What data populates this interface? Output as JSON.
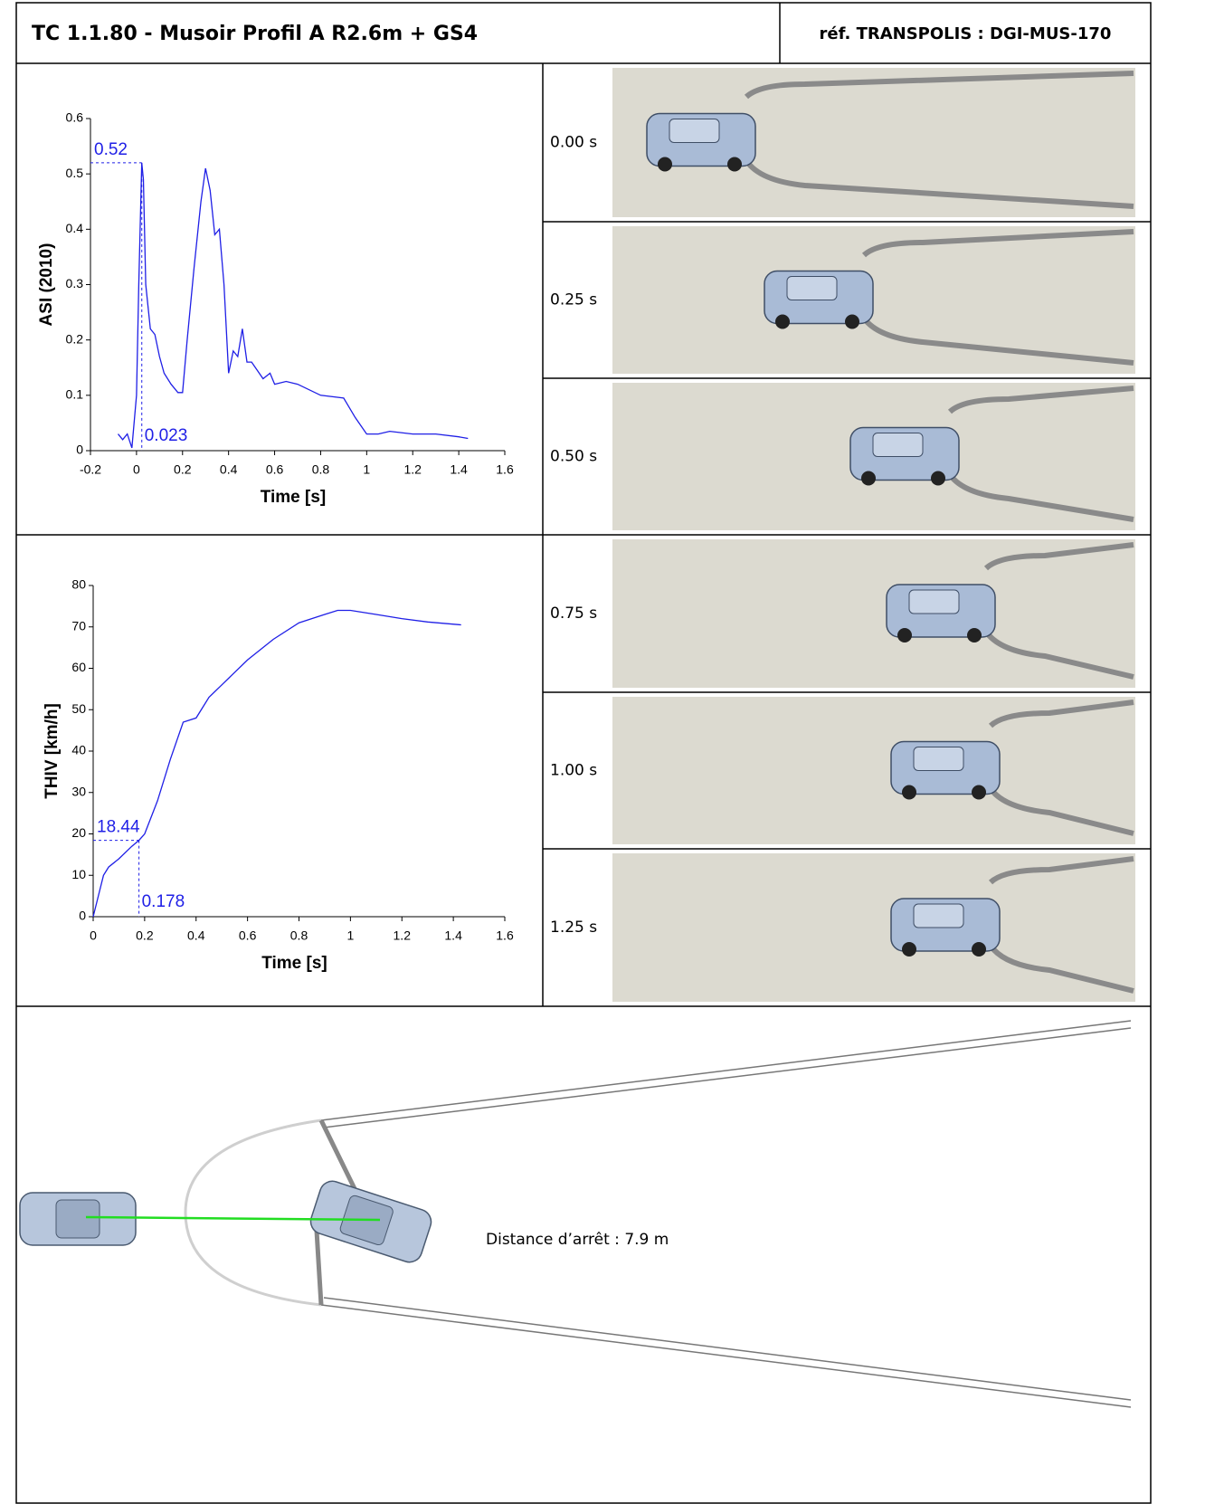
{
  "header": {
    "title": "TC 1.1.80 - Musoir Profil A R2.6m + GS4",
    "reference": "réf. TRANSPOLIS : DGI-MUS-170"
  },
  "chart_data": [
    {
      "type": "line",
      "ylabel": "ASI (2010)",
      "xlabel": "Time [s]",
      "color": "#1f1fe6",
      "x": [
        -0.08,
        -0.06,
        -0.04,
        -0.02,
        0.0,
        0.01,
        0.023,
        0.03,
        0.04,
        0.06,
        0.08,
        0.1,
        0.12,
        0.15,
        0.18,
        0.2,
        0.22,
        0.25,
        0.28,
        0.3,
        0.32,
        0.34,
        0.36,
        0.38,
        0.4,
        0.42,
        0.44,
        0.46,
        0.48,
        0.5,
        0.55,
        0.58,
        0.6,
        0.65,
        0.7,
        0.8,
        0.9,
        0.95,
        1.0,
        1.05,
        1.1,
        1.2,
        1.3,
        1.4,
        1.44
      ],
      "values": [
        0.03,
        0.02,
        0.03,
        0.005,
        0.1,
        0.3,
        0.52,
        0.49,
        0.3,
        0.22,
        0.21,
        0.17,
        0.14,
        0.12,
        0.105,
        0.105,
        0.2,
        0.33,
        0.45,
        0.51,
        0.47,
        0.39,
        0.4,
        0.3,
        0.14,
        0.18,
        0.17,
        0.22,
        0.16,
        0.16,
        0.13,
        0.14,
        0.12,
        0.125,
        0.12,
        0.1,
        0.095,
        0.06,
        0.03,
        0.03,
        0.035,
        0.03,
        0.03,
        0.025,
        0.022
      ],
      "xlim": [
        -0.2,
        1.6
      ],
      "xticks": [
        -0.2,
        0,
        0.2,
        0.4,
        0.6,
        0.8,
        1,
        1.2,
        1.4,
        1.6
      ],
      "ylim": [
        0,
        0.6
      ],
      "yticks": [
        0,
        0.1,
        0.2,
        0.3,
        0.4,
        0.5,
        0.6
      ],
      "annotation": {
        "x": 0.023,
        "y": 0.52
      }
    },
    {
      "type": "line",
      "ylabel": "THIV [km/h]",
      "xlabel": "Time [s]",
      "color": "#1f1fe6",
      "x": [
        0,
        0.02,
        0.04,
        0.06,
        0.1,
        0.15,
        0.178,
        0.2,
        0.25,
        0.3,
        0.35,
        0.4,
        0.45,
        0.5,
        0.6,
        0.7,
        0.8,
        0.9,
        0.95,
        1.0,
        1.1,
        1.2,
        1.3,
        1.43
      ],
      "values": [
        0,
        5,
        10,
        12,
        14,
        17,
        18.44,
        20,
        28,
        38,
        47,
        48,
        53,
        56,
        62,
        67,
        71,
        73,
        74,
        74,
        73,
        72,
        71.2,
        70.5
      ],
      "xlim": [
        0,
        1.6
      ],
      "xticks": [
        0,
        0.2,
        0.4,
        0.6,
        0.8,
        1,
        1.2,
        1.4,
        1.6
      ],
      "ylim": [
        0,
        80
      ],
      "yticks": [
        0,
        10,
        20,
        30,
        40,
        50,
        60,
        70,
        80
      ],
      "annotation": {
        "x": 0.178,
        "y": 18.44
      }
    }
  ],
  "snapshots": [
    "0.00 s",
    "0.25 s",
    "0.50 s",
    "0.75 s",
    "1.00 s",
    "1.25 s"
  ],
  "trajectory": {
    "label": "Distance d’arrêt : 7.9 m"
  }
}
